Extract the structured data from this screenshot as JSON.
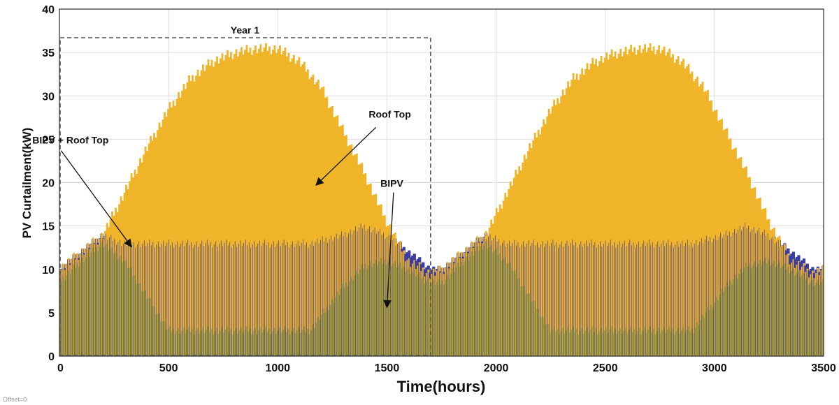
{
  "chart_data": {
    "type": "bar",
    "title": "",
    "xlabel": "Time(hours)",
    "ylabel": "PV Curtailment(kW)",
    "xlim": [
      0,
      3500
    ],
    "ylim": [
      0,
      40
    ],
    "xticks": [
      "0",
      "500",
      "1000",
      "1500",
      "2000",
      "2500",
      "3000",
      "3500"
    ],
    "yticks": [
      "0",
      "5",
      "10",
      "15",
      "20",
      "25",
      "30",
      "35",
      "40"
    ],
    "grid": true,
    "legend": "none",
    "period_hours": 1752,
    "series": [
      {
        "name": "Roof Top",
        "color": "#f0b428",
        "envelope_x": [
          0,
          100,
          200,
          300,
          400,
          500,
          600,
          700,
          800,
          900,
          1000,
          1100,
          1200,
          1300,
          1400,
          1500,
          1600,
          1700,
          1752
        ],
        "envelope_y": [
          10,
          12,
          14,
          19,
          24,
          28.5,
          32,
          34,
          35,
          35.5,
          35.5,
          34,
          31,
          26,
          21,
          15.5,
          11,
          9.5,
          10
        ]
      },
      {
        "name": "BIPV",
        "color": "#a5a12a",
        "envelope_x": [
          0,
          100,
          200,
          300,
          400,
          500,
          1150,
          1300,
          1400,
          1500,
          1600,
          1700,
          1752
        ],
        "envelope_y": [
          8.5,
          11,
          13,
          11,
          7,
          3,
          3,
          8,
          10.5,
          11,
          10,
          8.5,
          8.5
        ]
      },
      {
        "name": "BIPV + Roof Top",
        "color": "#3c3ca5",
        "envelope_x": [
          0,
          100,
          200,
          300,
          400,
          500,
          1150,
          1300,
          1400,
          1500,
          1600,
          1700,
          1752
        ],
        "envelope_y": [
          10,
          12,
          14,
          13,
          13,
          13,
          13,
          14,
          15,
          14,
          12,
          10,
          10
        ]
      }
    ],
    "annotations": [
      {
        "text": "Year 1",
        "kind": "dashed-box",
        "x": [
          0,
          1700
        ],
        "y": [
          0,
          36.7
        ]
      },
      {
        "text": "Roof Top",
        "kind": "arrow",
        "text_at": [
          1610,
          27.5
        ],
        "point_to": [
          1175,
          19.7
        ]
      },
      {
        "text": "BIPV + Roof Top",
        "kind": "arrow",
        "text_at": [
          225,
          24.5
        ],
        "point_to": [
          330,
          12.6
        ]
      },
      {
        "text": "BIPV",
        "kind": "arrow",
        "text_at": [
          1575,
          19.5
        ],
        "point_to": [
          1500,
          5.6
        ]
      }
    ]
  },
  "footer_note": "Offset=0"
}
